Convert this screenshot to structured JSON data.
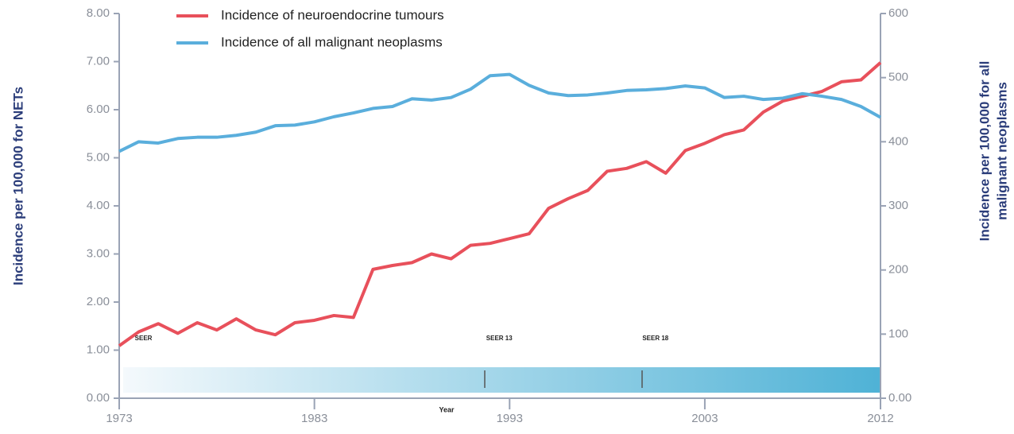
{
  "chart_data": {
    "type": "line",
    "ylabel": "Incidence per 100,000 for NETs",
    "y2label": [
      "Incidence per 100,000 for all",
      "malignant neoplasms"
    ],
    "xlabel": "Year",
    "x": [
      1973,
      1974,
      1975,
      1976,
      1977,
      1978,
      1979,
      1980,
      1981,
      1982,
      1983,
      1984,
      1985,
      1986,
      1987,
      1988,
      1989,
      1990,
      1991,
      1992,
      1993,
      1994,
      1995,
      1996,
      1997,
      1998,
      1999,
      2000,
      2001,
      2002,
      2003,
      2004,
      2005,
      2006,
      2007,
      2008,
      2009,
      2010,
      2011,
      2012
    ],
    "series": [
      {
        "name": "Incidence of neuroendocrine tumours",
        "color": "#e8505b",
        "values": [
          1.09,
          1.38,
          1.55,
          1.35,
          1.57,
          1.42,
          1.65,
          1.42,
          1.32,
          1.57,
          1.62,
          1.72,
          1.68,
          2.68,
          2.76,
          2.82,
          3.0,
          2.9,
          3.18,
          3.22,
          3.32,
          3.42,
          3.95,
          4.15,
          4.32,
          4.72,
          4.78,
          4.92,
          4.68,
          5.15,
          5.3,
          5.48,
          5.58,
          5.95,
          6.18,
          6.28,
          6.38,
          6.58,
          6.62,
          6.98
        ]
      },
      {
        "name": "Incidence of all malignant neoplasms",
        "color": "#5aaedc",
        "axis": "y2",
        "values": [
          385,
          400,
          398,
          405,
          407,
          407,
          410,
          415,
          425,
          426,
          431,
          439,
          445,
          452,
          455,
          467,
          465,
          469,
          482,
          503,
          505,
          488,
          476,
          472,
          473,
          476,
          480,
          481,
          483,
          487,
          484,
          469,
          471,
          466,
          468,
          475,
          471,
          466,
          455,
          438
        ]
      }
    ],
    "xlim": [
      1973,
      2012
    ],
    "xticks": [
      1973,
      1983,
      1993,
      2003,
      2012
    ],
    "ylim": [
      0,
      8
    ],
    "yticks": [
      {
        "value": 0,
        "label": "0.00"
      },
      {
        "value": 1,
        "label": "1.00"
      },
      {
        "value": 2,
        "label": "2.00"
      },
      {
        "value": 3,
        "label": "3.00"
      },
      {
        "value": 4,
        "label": "4.00"
      },
      {
        "value": 5,
        "label": "5.00"
      },
      {
        "value": 6,
        "label": "6.00"
      },
      {
        "value": 7,
        "label": "7.00"
      },
      {
        "value": 8,
        "label": "8.00"
      }
    ],
    "y2lim": [
      0,
      600
    ],
    "y2ticks": [
      {
        "value": 0,
        "label": "0.00"
      },
      100,
      200,
      300,
      400,
      500,
      600
    ],
    "annotations": [
      {
        "text": "SEER",
        "x": 1973.8
      },
      {
        "text": "SEER 13",
        "x": 1991.8
      },
      {
        "text": "SEER 18",
        "x": 1999.8
      }
    ],
    "legend": "top"
  }
}
